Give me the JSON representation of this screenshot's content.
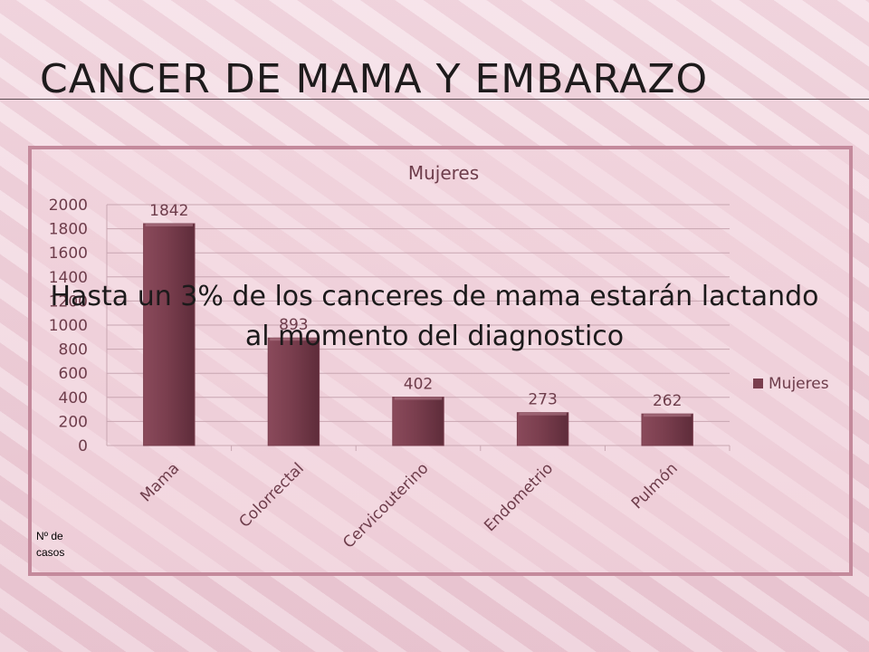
{
  "slide": {
    "title": "CANCER DE MAMA Y EMBARAZO",
    "overlay_text": "Hasta un 3% de los canceres de mama estarán lactando al momento del diagnostico",
    "axis_note": "Nº de casos"
  },
  "colors": {
    "bar": "#7a3e4e",
    "bar_highlight": "#b07a88",
    "axis_text": "#6e3d4b",
    "grid": "#c8a6b1"
  },
  "chart_data": {
    "type": "bar",
    "title": "Mujeres",
    "categories": [
      "Mama",
      "Colorrectal",
      "Cervicouterino",
      "Endometrio",
      "Pulmón"
    ],
    "series": [
      {
        "name": "Mujeres",
        "values": [
          1842,
          893,
          402,
          273,
          262
        ]
      }
    ],
    "data_labels": [
      "1842",
      "893",
      "402",
      "273",
      "262"
    ],
    "y_ticks": [
      "0",
      "200",
      "400",
      "600",
      "800",
      "1000",
      "1200",
      "1400",
      "1600",
      "1800",
      "2000"
    ],
    "ylim": [
      0,
      2000
    ],
    "legend_position": "right",
    "grid": true
  }
}
